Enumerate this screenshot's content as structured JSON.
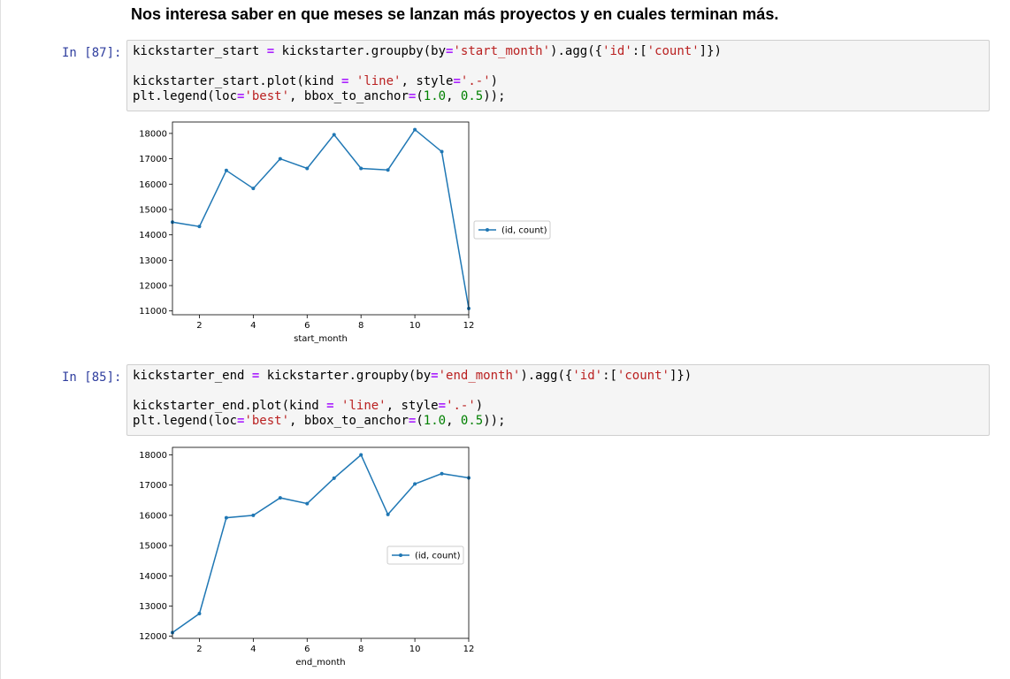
{
  "notebook": {
    "heading": "Nos interesa saber en que meses se lanzan más proyectos y en cuales terminan más."
  },
  "cells": [
    {
      "prompt": "In [87]:",
      "code_lines": [
        [
          {
            "t": "txt",
            "v": "kickstarter_start "
          },
          {
            "t": "op",
            "v": "="
          },
          {
            "t": "txt",
            "v": " kickstarter.groupby(by"
          },
          {
            "t": "op",
            "v": "="
          },
          {
            "t": "str",
            "v": "'start_month'"
          },
          {
            "t": "txt",
            "v": ").agg({"
          },
          {
            "t": "str",
            "v": "'id'"
          },
          {
            "t": "txt",
            "v": ":["
          },
          {
            "t": "str",
            "v": "'count'"
          },
          {
            "t": "txt",
            "v": "]})"
          }
        ],
        [],
        [
          {
            "t": "txt",
            "v": "kickstarter_start.plot(kind "
          },
          {
            "t": "op",
            "v": "="
          },
          {
            "t": "txt",
            "v": " "
          },
          {
            "t": "str",
            "v": "'line'"
          },
          {
            "t": "txt",
            "v": ", style"
          },
          {
            "t": "op",
            "v": "="
          },
          {
            "t": "str",
            "v": "'.-'"
          },
          {
            "t": "txt",
            "v": ")"
          }
        ],
        [
          {
            "t": "txt",
            "v": "plt.legend(loc"
          },
          {
            "t": "op",
            "v": "="
          },
          {
            "t": "str",
            "v": "'best'"
          },
          {
            "t": "txt",
            "v": ", bbox_to_anchor"
          },
          {
            "t": "op",
            "v": "="
          },
          {
            "t": "txt",
            "v": "("
          },
          {
            "t": "num",
            "v": "1.0"
          },
          {
            "t": "txt",
            "v": ", "
          },
          {
            "t": "num",
            "v": "0.5"
          },
          {
            "t": "txt",
            "v": "));"
          }
        ]
      ]
    },
    {
      "prompt": "In [85]:",
      "code_lines": [
        [
          {
            "t": "txt",
            "v": "kickstarter_end "
          },
          {
            "t": "op",
            "v": "="
          },
          {
            "t": "txt",
            "v": " kickstarter.groupby(by"
          },
          {
            "t": "op",
            "v": "="
          },
          {
            "t": "str",
            "v": "'end_month'"
          },
          {
            "t": "txt",
            "v": ").agg({"
          },
          {
            "t": "str",
            "v": "'id'"
          },
          {
            "t": "txt",
            "v": ":["
          },
          {
            "t": "str",
            "v": "'count'"
          },
          {
            "t": "txt",
            "v": "]})"
          }
        ],
        [],
        [
          {
            "t": "txt",
            "v": "kickstarter_end.plot(kind "
          },
          {
            "t": "op",
            "v": "="
          },
          {
            "t": "txt",
            "v": " "
          },
          {
            "t": "str",
            "v": "'line'"
          },
          {
            "t": "txt",
            "v": ", style"
          },
          {
            "t": "op",
            "v": "="
          },
          {
            "t": "str",
            "v": "'.-'"
          },
          {
            "t": "txt",
            "v": ")"
          }
        ],
        [
          {
            "t": "txt",
            "v": "plt.legend(loc"
          },
          {
            "t": "op",
            "v": "="
          },
          {
            "t": "str",
            "v": "'best'"
          },
          {
            "t": "txt",
            "v": ", bbox_to_anchor"
          },
          {
            "t": "op",
            "v": "="
          },
          {
            "t": "txt",
            "v": "("
          },
          {
            "t": "num",
            "v": "1.0"
          },
          {
            "t": "txt",
            "v": ", "
          },
          {
            "t": "num",
            "v": "0.5"
          },
          {
            "t": "txt",
            "v": "));"
          }
        ]
      ]
    }
  ],
  "colors": {
    "prompt": "#303f9f",
    "operator": "#aa22ff",
    "string": "#ba2121",
    "number": "#008000",
    "line": "#1f77b4"
  },
  "chart_data": [
    {
      "type": "line",
      "xlabel": "start_month",
      "ylabel": "",
      "x": [
        1,
        2,
        3,
        4,
        5,
        6,
        7,
        8,
        9,
        10,
        11,
        12
      ],
      "xticks": [
        2,
        4,
        6,
        8,
        10,
        12
      ],
      "yticks": [
        11000,
        12000,
        13000,
        14000,
        15000,
        16000,
        17000,
        18000
      ],
      "xlim": [
        1,
        12
      ],
      "ylim": [
        10850,
        18450
      ],
      "series": [
        {
          "name": "(id, count)",
          "values": [
            14500,
            14330,
            16540,
            15830,
            17000,
            16620,
            17950,
            16620,
            16560,
            18150,
            17280,
            11100
          ]
        }
      ],
      "legend": {
        "placement": "center-right-outside"
      },
      "grid": false
    },
    {
      "type": "line",
      "xlabel": "end_month",
      "ylabel": "",
      "x": [
        1,
        2,
        3,
        4,
        5,
        6,
        7,
        8,
        9,
        10,
        11,
        12
      ],
      "xticks": [
        2,
        4,
        6,
        8,
        10,
        12
      ],
      "yticks": [
        12000,
        13000,
        14000,
        15000,
        16000,
        17000,
        18000
      ],
      "xlim": [
        1,
        12
      ],
      "ylim": [
        11930,
        18250
      ],
      "series": [
        {
          "name": "(id, count)",
          "values": [
            12120,
            12750,
            15920,
            16000,
            16580,
            16390,
            17230,
            18000,
            16030,
            17040,
            17380,
            17240
          ]
        }
      ],
      "legend": {
        "placement": "center-right"
      },
      "grid": false
    }
  ]
}
